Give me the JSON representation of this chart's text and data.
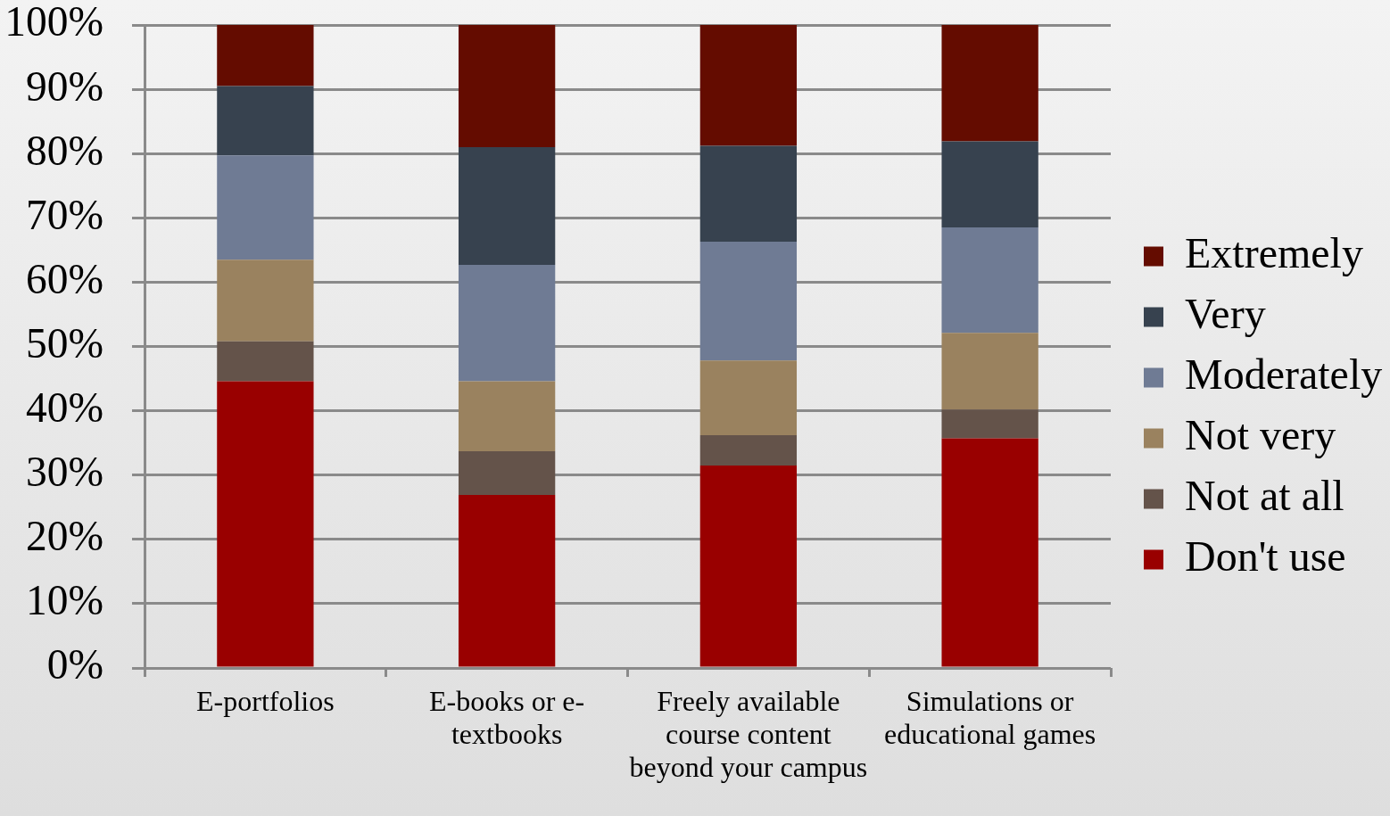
{
  "chart_data": {
    "type": "bar",
    "stacked": true,
    "categories": [
      "E-portfolios",
      "E-books or e-textbooks",
      "Freely available course content beyond your campus",
      "Simulations or educational games"
    ],
    "series": [
      {
        "name": "Don't use",
        "color": "#990000",
        "values": [
          44.6,
          26.9,
          31.5,
          35.7
        ]
      },
      {
        "name": "Not at all",
        "color": "#64534a",
        "values": [
          6.2,
          6.8,
          4.7,
          4.5
        ]
      },
      {
        "name": "Not very",
        "color": "#9a825f",
        "values": [
          12.7,
          10.9,
          11.6,
          11.9
        ]
      },
      {
        "name": "Moderately",
        "color": "#6f7b94",
        "values": [
          16.2,
          18.1,
          18.5,
          16.4
        ]
      },
      {
        "name": "Very",
        "color": "#37424f",
        "values": [
          10.8,
          18.3,
          14.9,
          13.4
        ]
      },
      {
        "name": "Extremely",
        "color": "#640c00",
        "values": [
          9.5,
          19.0,
          18.8,
          18.1
        ]
      }
    ],
    "ylim": [
      0,
      100
    ],
    "yticks": [
      {
        "value": 0,
        "label": "0%"
      },
      {
        "value": 10,
        "label": "10%"
      },
      {
        "value": 20,
        "label": "20%"
      },
      {
        "value": 30,
        "label": "30%"
      },
      {
        "value": 40,
        "label": "40%"
      },
      {
        "value": 50,
        "label": "50%"
      },
      {
        "value": 60,
        "label": "60%"
      },
      {
        "value": 70,
        "label": "70%"
      },
      {
        "value": 80,
        "label": "80%"
      },
      {
        "value": 90,
        "label": "90%"
      },
      {
        "value": 100,
        "label": "100%"
      }
    ],
    "grid": "y",
    "legend": "right"
  }
}
